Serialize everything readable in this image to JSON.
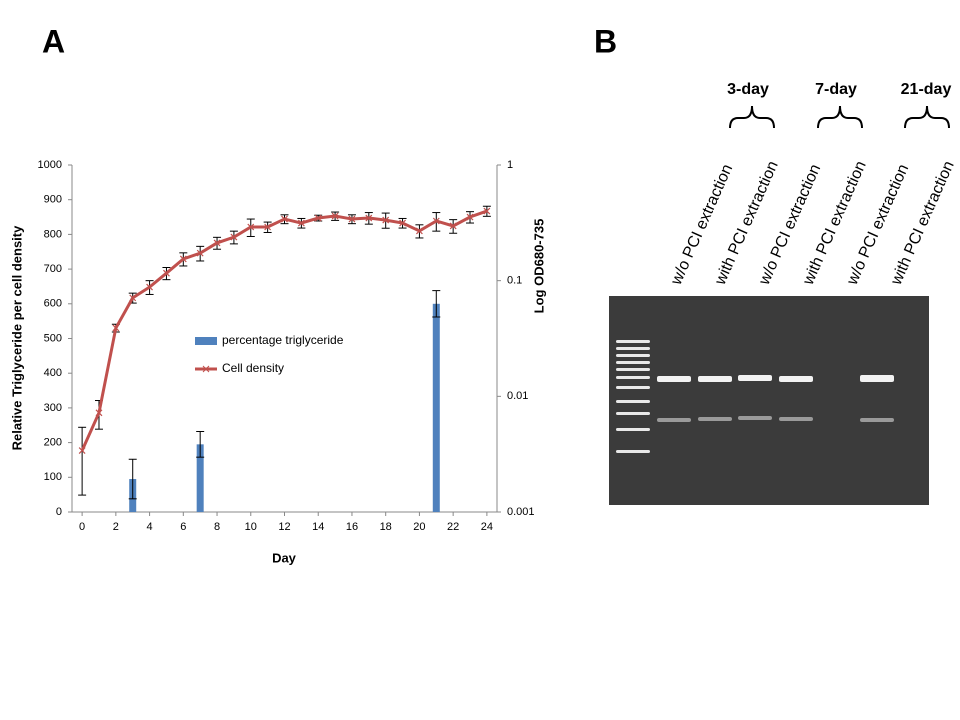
{
  "figure": {
    "panel_a": "A",
    "panel_b": "B"
  },
  "chart_data": {
    "type": "bar_line",
    "x_label": "Day",
    "y_label": "Relative Triglyceride per cell density",
    "y2_label": "Log OD680-735",
    "xlim": [
      -0.6,
      24.6
    ],
    "xticks": [
      0,
      2,
      4,
      6,
      8,
      10,
      12,
      14,
      16,
      18,
      20,
      22,
      24
    ],
    "ylim": [
      0,
      1000
    ],
    "yticks": [
      0,
      100,
      200,
      300,
      400,
      500,
      600,
      700,
      800,
      900,
      1000
    ],
    "y2lim": [
      0.001,
      1
    ],
    "y2ticks": [
      0.001,
      0.01,
      0.1,
      1
    ],
    "y2_log": true,
    "grid": false,
    "legend": "center",
    "series": [
      {
        "name": "percentage triglyceride",
        "color": "#4f81bd",
        "x": [
          3,
          7,
          21
        ],
        "values": [
          95,
          195,
          600
        ],
        "errors": [
          57,
          37,
          38
        ]
      },
      {
        "name": "Cell density",
        "color": "#c0504d",
        "axis": "y2",
        "marker": "x",
        "x": [
          0,
          1,
          2,
          3,
          4,
          5,
          6,
          7,
          8,
          9,
          10,
          11,
          12,
          13,
          14,
          15,
          16,
          17,
          18,
          19,
          20,
          21,
          22,
          23,
          24
        ],
        "values": [
          0.0034,
          0.0072,
          0.039,
          0.071,
          0.088,
          0.116,
          0.154,
          0.173,
          0.212,
          0.238,
          0.291,
          0.291,
          0.341,
          0.315,
          0.348,
          0.362,
          0.341,
          0.348,
          0.334,
          0.315,
          0.269,
          0.328,
          0.297,
          0.355,
          0.4
        ],
        "errors": [
          0.002,
          0.002,
          0.003,
          0.007,
          0.012,
          0.014,
          0.02,
          0.025,
          0.025,
          0.03,
          0.05,
          0.03,
          0.03,
          0.03,
          0.02,
          0.03,
          0.03,
          0.04,
          0.05,
          0.03,
          0.035,
          0.06,
          0.04,
          0.04,
          0.04
        ]
      }
    ]
  },
  "gel": {
    "groups": [
      "3-day",
      "7-day",
      "21-day"
    ],
    "lanes": [
      "w/o PCI extraction",
      "with PCI extraction",
      "w/o PCI extraction",
      "with PCI extraction",
      "w/o PCI extraction",
      "with PCI extraction"
    ]
  }
}
